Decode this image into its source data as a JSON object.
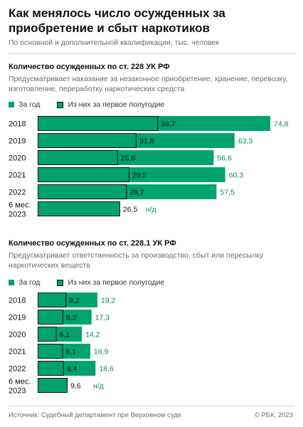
{
  "header": {
    "title": "Как менялось число осужденных за приобретение и сбыт наркотиков",
    "subtitle": "По основной и дополнительной квалификации, тыс. человек"
  },
  "legend": {
    "full": "За год",
    "half": "Из них за первое полугодие"
  },
  "colors": {
    "green": "#00a36c",
    "outline": "#111111",
    "value_text": "#0a8a5c"
  },
  "na_label": "н/д",
  "footer": {
    "source": "Источник: Судебный департамент при Верховном суде",
    "copyright": "© РБК, 2023"
  },
  "chart_data": [
    {
      "type": "bar",
      "title": "Количество осужденных по ст. 228 УК РФ",
      "description": "Предусматривает наказание за незаконное приобретение, хранение, перевозку, изготовление, переработку наркотических средств",
      "categories": [
        "2018",
        "2019",
        "2020",
        "2021",
        "2022",
        "6 мес. 2023"
      ],
      "series": [
        {
          "name": "За год",
          "values": [
            74.8,
            63.3,
            56.6,
            60.3,
            57.5,
            null
          ]
        },
        {
          "name": "Из них за первое полугодие",
          "values": [
            38.7,
            31.8,
            25.8,
            29.5,
            28.7,
            26.5
          ]
        }
      ],
      "xlim": [
        0,
        80
      ]
    },
    {
      "type": "bar",
      "title": "Количество осужденных по ст. 228.1 УК РФ",
      "description": "Предусматривает ответственность за производство, сбыт или пересылку наркотических веществ",
      "categories": [
        "2018",
        "2019",
        "2020",
        "2021",
        "2022",
        "6 мес. 2023"
      ],
      "series": [
        {
          "name": "За год",
          "values": [
            19.2,
            17.3,
            14.2,
            16.9,
            18.6,
            null
          ]
        },
        {
          "name": "Из них за первое полугодие",
          "values": [
            9.2,
            8.2,
            6.1,
            8.1,
            8.4,
            9.6
          ]
        }
      ],
      "xlim": [
        0,
        80
      ]
    }
  ]
}
